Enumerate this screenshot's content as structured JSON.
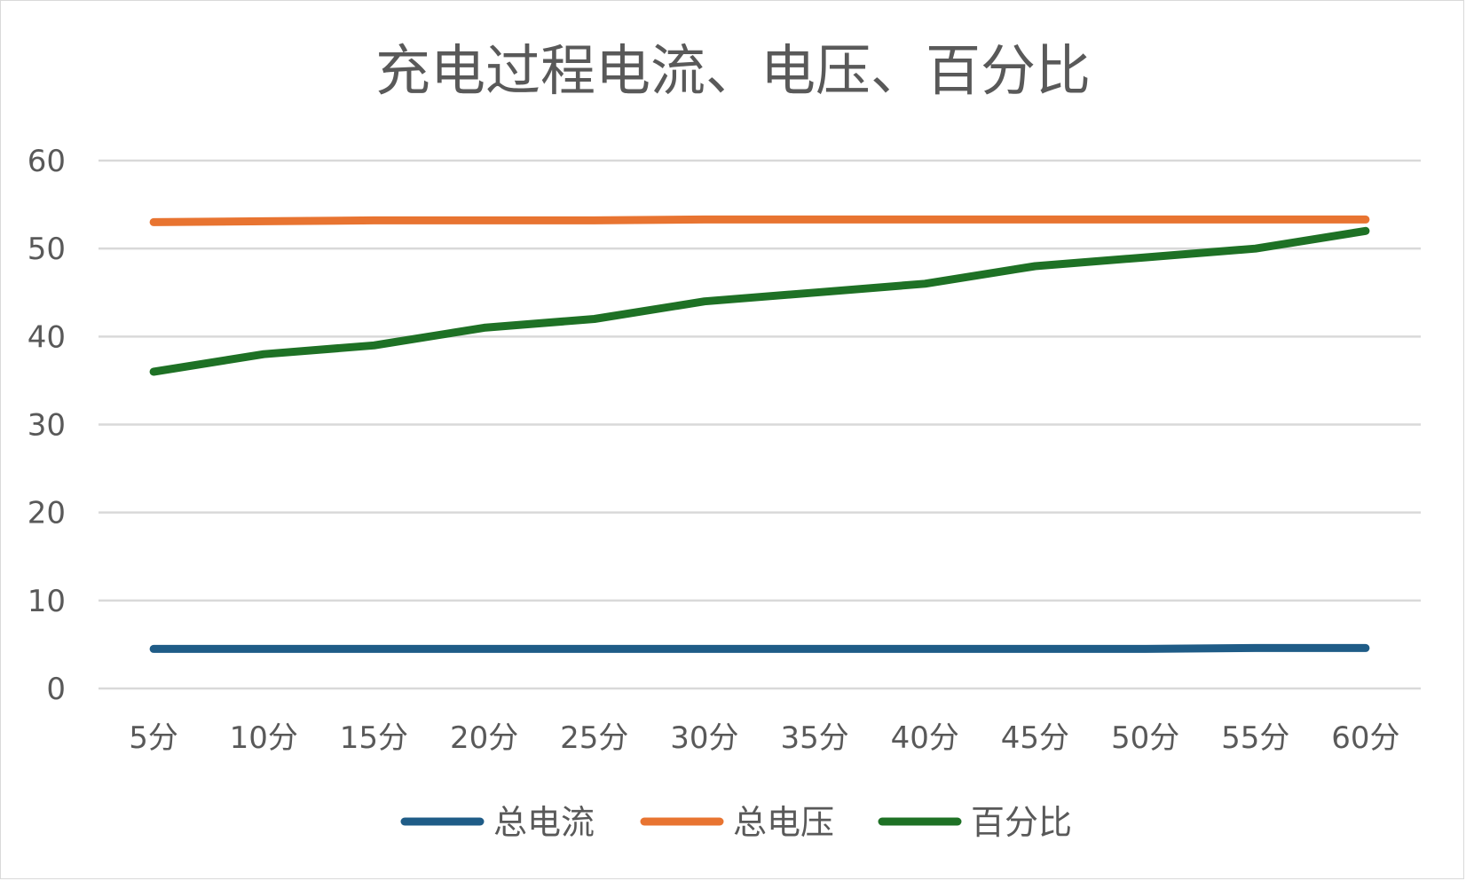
{
  "chart_data": {
    "type": "line",
    "title": "充电过程电流、电压、百分比",
    "xlabel": "",
    "ylabel": "",
    "categories": [
      "5分",
      "10分",
      "15分",
      "20分",
      "25分",
      "30分",
      "35分",
      "40分",
      "45分",
      "50分",
      "55分",
      "60分"
    ],
    "ylim": [
      0,
      60
    ],
    "yticks": [
      0,
      10,
      20,
      30,
      40,
      50,
      60
    ],
    "grid": "horizontal",
    "legend_position": "bottom",
    "series": [
      {
        "name": "总电流",
        "color": "#1f5c87",
        "values": [
          4.5,
          4.5,
          4.5,
          4.5,
          4.5,
          4.5,
          4.5,
          4.5,
          4.5,
          4.5,
          4.6,
          4.6
        ]
      },
      {
        "name": "总电压",
        "color": "#e87431",
        "values": [
          53.0,
          53.1,
          53.2,
          53.2,
          53.2,
          53.3,
          53.3,
          53.3,
          53.3,
          53.3,
          53.3,
          53.3
        ]
      },
      {
        "name": "百分比",
        "color": "#1e7125",
        "values": [
          36,
          38,
          39,
          41,
          42,
          44,
          45,
          46,
          48,
          49,
          50,
          52
        ]
      }
    ]
  }
}
